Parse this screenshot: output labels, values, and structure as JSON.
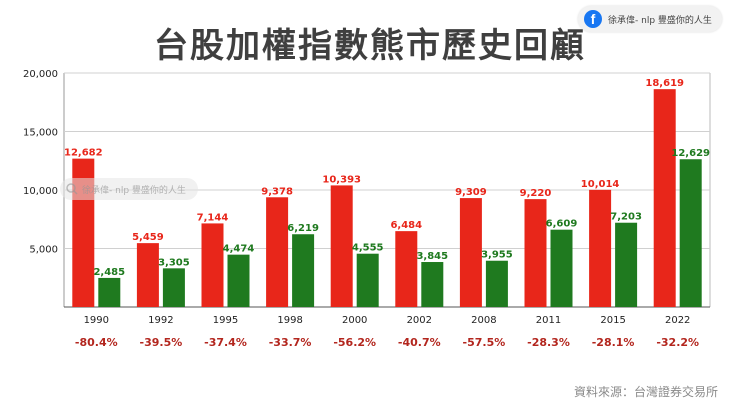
{
  "badge": {
    "text": "徐承偉- nlp 豐盛你的人生",
    "icon": "facebook-icon"
  },
  "watermark": {
    "text": "徐承偉- nlp 豐盛你的人生",
    "icon": "search-icon"
  },
  "source": "資料來源：台灣證券交易所",
  "colors": {
    "red": "#e8261a",
    "green": "#1f7a1f",
    "decline": "#b3261e",
    "title": "#3f3f3f"
  },
  "chart_data": {
    "type": "bar",
    "title": "台股加權指數熊市歷史回顧",
    "categories": [
      "1990",
      "1992",
      "1995",
      "1998",
      "2000",
      "2002",
      "2008",
      "2011",
      "2015",
      "2022"
    ],
    "series": [
      {
        "values": [
          12682,
          5459,
          7144,
          9378,
          10393,
          6484,
          9309,
          9220,
          10014,
          18619
        ],
        "labels": [
          "12,682",
          "5,459",
          "7,144",
          "9,378",
          "10,393",
          "6,484",
          "9,309",
          "9,220",
          "10,014",
          "18,619"
        ],
        "color": "#e8261a"
      },
      {
        "values": [
          2485,
          3305,
          4474,
          6219,
          4555,
          3845,
          3955,
          6609,
          7203,
          12629
        ],
        "labels": [
          "2,485",
          "3,305",
          "4,474",
          "6,219",
          "4,555",
          "3,845",
          "3,955",
          "6,609",
          "7,203",
          "12,629"
        ],
        "color": "#1f7a1f"
      }
    ],
    "declines": [
      "-80.4%",
      "-39.5%",
      "-37.4%",
      "-33.7%",
      "-56.2%",
      "-40.7%",
      "-57.5%",
      "-28.3%",
      "-28.1%",
      "-32.2%"
    ],
    "yticks": [
      5000,
      10000,
      15000,
      20000
    ],
    "ytick_labels": [
      "5,000",
      "10,000",
      "15,000",
      "20,000"
    ],
    "ylim": [
      0,
      20000
    ],
    "grid": true,
    "legend": "none"
  }
}
